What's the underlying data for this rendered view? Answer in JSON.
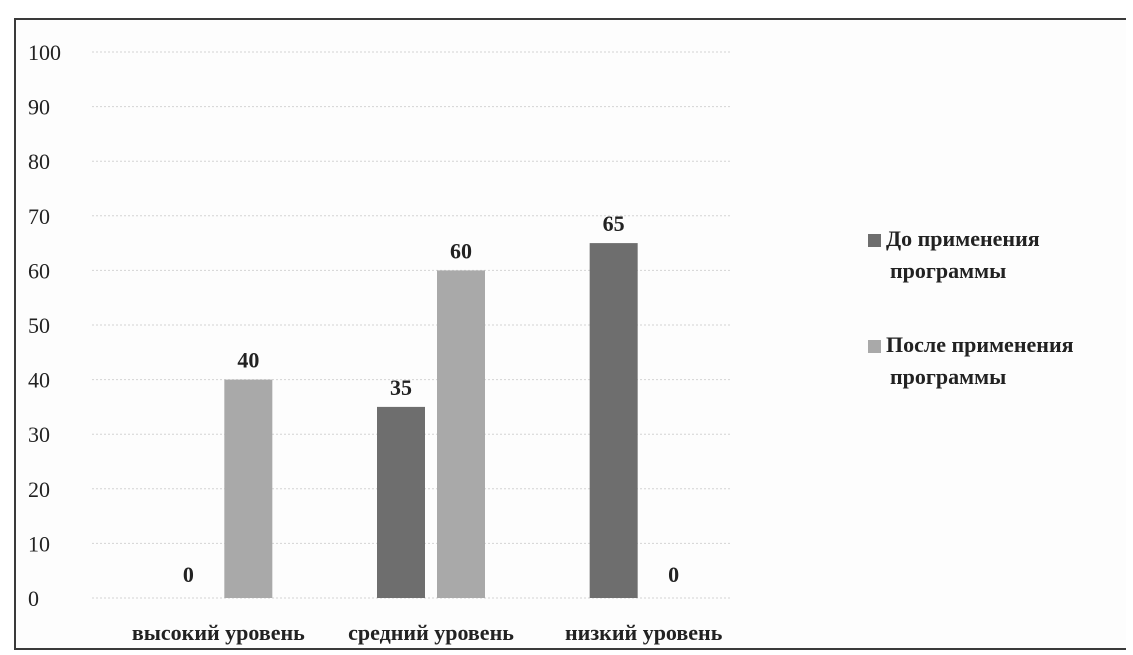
{
  "chart_data": {
    "type": "bar",
    "title": "",
    "xlabel": "",
    "ylabel": "",
    "categories": [
      "высокий уровень",
      "средний уровень",
      "низкий уровень"
    ],
    "series": [
      {
        "name": "До применения программы",
        "name_lines": [
          "До применения",
          "программы"
        ],
        "values": [
          0,
          35,
          65
        ],
        "color": "#6e6e6e"
      },
      {
        "name": "После применения программы",
        "name_lines": [
          "После применения",
          "программы"
        ],
        "values": [
          40,
          60,
          0
        ],
        "color": "#a9a9a9"
      }
    ],
    "ylim": [
      0,
      100
    ],
    "yticks": [
      0,
      10,
      20,
      30,
      40,
      50,
      60,
      70,
      80,
      90,
      100
    ],
    "grid": true,
    "legend": "right",
    "data_labels": true
  }
}
